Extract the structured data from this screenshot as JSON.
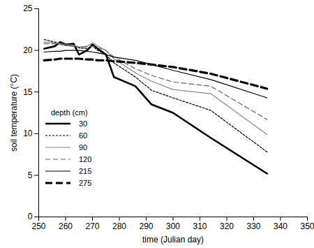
{
  "chart_data": {
    "type": "line",
    "x_label": "time (Julian day)",
    "y_label": "soil temperature (°C)",
    "legend_title": "depth (cm)",
    "legend": "left",
    "x": [
      252,
      256,
      258,
      260,
      263,
      265,
      268,
      270,
      272,
      275,
      278,
      286,
      292,
      300,
      314,
      335
    ],
    "series": [
      {
        "name": "30",
        "color": "#000000",
        "line_style": "thick",
        "values": [
          20.2,
          20.5,
          21.0,
          20.7,
          20.8,
          19.5,
          20.0,
          20.7,
          20.2,
          19.5,
          16.8,
          15.7,
          13.5,
          12.5,
          9.5,
          5.2
        ]
      },
      {
        "name": "60",
        "color": "#000000",
        "line_style": "shortdash",
        "values": [
          21.3,
          21.0,
          20.8,
          20.6,
          20.5,
          20.3,
          20.2,
          20.5,
          20.0,
          19.5,
          18.5,
          16.8,
          15.2,
          14.3,
          12.8,
          7.8
        ]
      },
      {
        "name": "90",
        "color": "#888888",
        "line_style": "solid",
        "values": [
          21.0,
          20.9,
          20.8,
          20.7,
          20.6,
          20.4,
          20.5,
          20.9,
          20.5,
          20.0,
          19.0,
          17.3,
          16.3,
          15.3,
          14.8,
          9.9
        ]
      },
      {
        "name": "120",
        "color": "#666666",
        "line_style": "dashed",
        "values": [
          20.8,
          20.8,
          20.7,
          20.6,
          20.5,
          20.4,
          20.4,
          20.5,
          20.3,
          20.0,
          19.2,
          17.8,
          17.0,
          16.2,
          15.7,
          11.7
        ]
      },
      {
        "name": "215",
        "color": "#000000",
        "line_style": "solid",
        "values": [
          19.8,
          19.9,
          19.9,
          20.0,
          20.0,
          20.0,
          19.9,
          19.8,
          19.7,
          19.5,
          19.2,
          18.8,
          18.3,
          17.6,
          16.5,
          14.3
        ]
      },
      {
        "name": "275",
        "color": "#000000",
        "line_style": "thickdash",
        "values": [
          18.8,
          18.9,
          19.0,
          19.0,
          19.0,
          19.0,
          18.9,
          18.9,
          18.8,
          18.8,
          18.7,
          18.5,
          18.3,
          18.0,
          17.2,
          15.4
        ]
      }
    ],
    "xlim": [
      250,
      350
    ],
    "xticks": [
      250,
      260,
      270,
      280,
      290,
      300,
      310,
      320,
      330,
      340,
      350
    ],
    "ylim": [
      0,
      25
    ],
    "yticks": [
      0,
      5,
      10,
      15,
      20,
      25
    ],
    "grid": false
  }
}
